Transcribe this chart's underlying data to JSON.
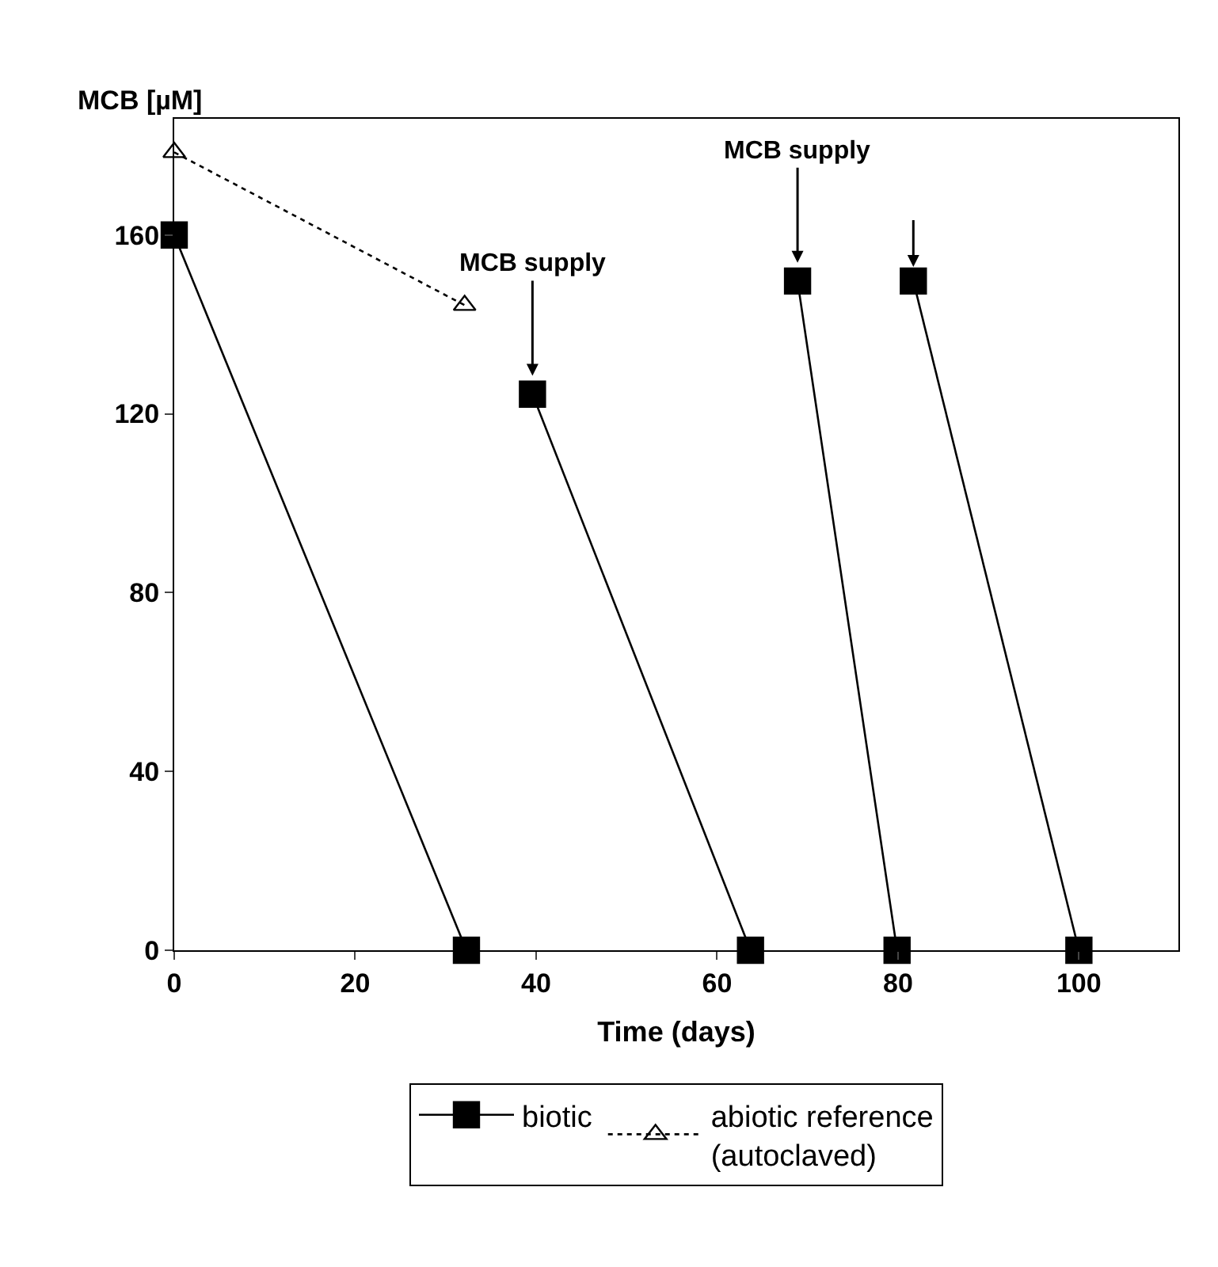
{
  "chart_data": {
    "type": "line",
    "xlabel": "Time (days)",
    "ylabel": "MCB [µM]",
    "xlim": [
      0,
      111
    ],
    "xticks": [
      0,
      20,
      40,
      60,
      80,
      100
    ],
    "ylim": [
      0,
      186
    ],
    "yticks": [
      0,
      40,
      80,
      120,
      160
    ],
    "legend": "bottom",
    "series": [
      {
        "name": "biotic",
        "color": "#000000",
        "marker": "square",
        "line_style": "solid",
        "x": [
          0,
          32.3,
          null,
          39.6,
          63.7,
          null,
          68.9,
          79.9,
          null,
          81.7,
          100
        ],
        "values": [
          160,
          0,
          null,
          124.4,
          0,
          null,
          149.7,
          0,
          null,
          149.7,
          0
        ]
      },
      {
        "name": "abiotic reference\n(autoclaved)",
        "color": "#000000",
        "marker": "triangle",
        "line_style": "dotted",
        "x": [
          0,
          32.1
        ],
        "values": [
          178.5,
          144.3
        ]
      }
    ],
    "annotations": [
      {
        "text": "MCB supply",
        "x": 39.6,
        "y": 128.5
      },
      {
        "text": "MCB supply",
        "x": 68.9,
        "y": 153.8
      }
    ]
  }
}
